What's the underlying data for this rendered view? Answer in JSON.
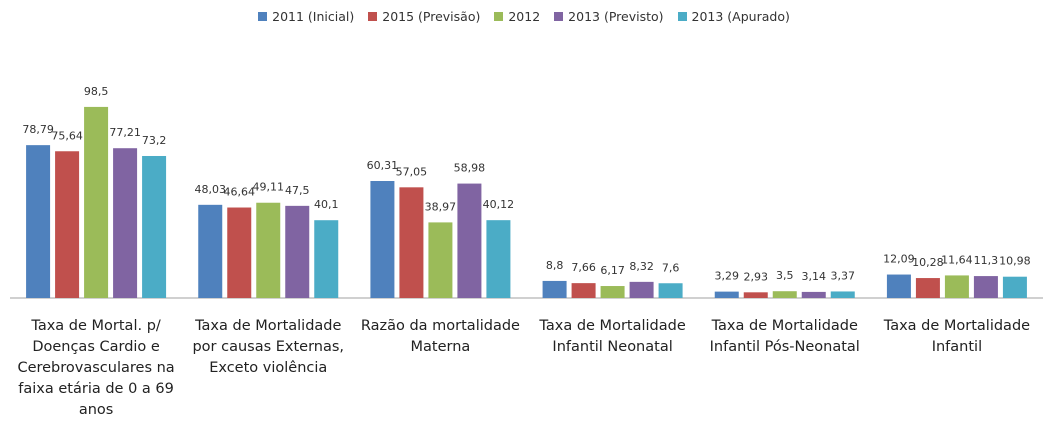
{
  "chart_data": {
    "type": "bar",
    "categories": [
      "Taxa de Mortal. p/ Doenças Cardio e Cerebrovasculares na faixa etária de 0 a 69 anos",
      "Taxa de Mortalidade por causas Externas, Exceto violência",
      "Razão da mortalidade Materna",
      "Taxa de Mortalidade Infantil Neonatal",
      "Taxa de Mortalidade Infantil Pós-Neonatal",
      "Taxa de Mortalidade Infantil"
    ],
    "series": [
      {
        "name": "2011 (Inicial)",
        "color": "#4f81bd",
        "values": [
          78.79,
          48.03,
          60.31,
          8.8,
          3.29,
          12.09
        ],
        "value_labels": [
          "78,79",
          "48,03",
          "60,31",
          "8,8",
          "3,29",
          "12,09"
        ]
      },
      {
        "name": "2015 (Previsão)",
        "color": "#c0504d",
        "values": [
          75.64,
          46.64,
          57.05,
          7.66,
          2.93,
          10.28
        ],
        "value_labels": [
          "75,64",
          "46,64",
          "57,05",
          "7,66",
          "2,93",
          "10,28"
        ]
      },
      {
        "name": "2012",
        "color": "#9bbb59",
        "values": [
          98.5,
          49.11,
          38.97,
          6.17,
          3.5,
          11.64
        ],
        "value_labels": [
          "98,5",
          "49,11",
          "38,97",
          "6,17",
          "3,5",
          "11,64"
        ]
      },
      {
        "name": "2013 (Previsto)",
        "color": "#8064a2",
        "values": [
          77.21,
          47.5,
          58.98,
          8.32,
          3.14,
          11.3
        ],
        "value_labels": [
          "77,21",
          "47,5",
          "58,98",
          "8,32",
          "3,14",
          "11,3"
        ]
      },
      {
        "name": "2013 (Apurado)",
        "color": "#4bacc6",
        "values": [
          73.2,
          40.1,
          40.12,
          7.6,
          3.37,
          10.98
        ],
        "value_labels": [
          "73,2",
          "40,1",
          "40,12",
          "7,6",
          "3,37",
          "10,98"
        ]
      }
    ],
    "legend": "top"
  }
}
